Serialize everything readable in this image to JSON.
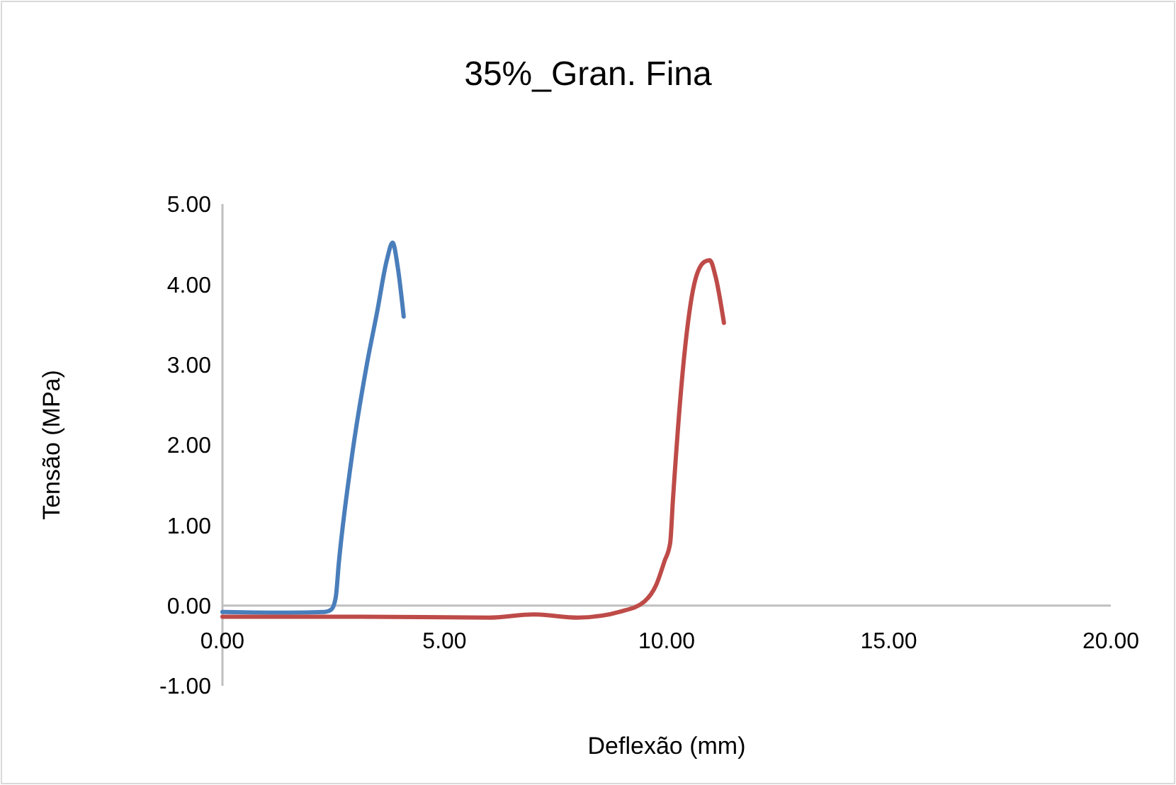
{
  "chart_data": {
    "type": "line",
    "title": "35%_Gran. Fina",
    "xlabel": "Deflexão (mm)",
    "ylabel": "Tensão (MPa)",
    "xlim": [
      0,
      20
    ],
    "xticks": [
      {
        "value": 0,
        "label": "0.00"
      },
      {
        "value": 5,
        "label": "5.00"
      },
      {
        "value": 10,
        "label": "10.00"
      },
      {
        "value": 15,
        "label": "15.00"
      },
      {
        "value": 20,
        "label": "20.00"
      }
    ],
    "ylim": [
      -1,
      5
    ],
    "yticks": [
      {
        "value": -1,
        "label": "-1.00"
      },
      {
        "value": 0,
        "label": "0.00"
      },
      {
        "value": 1,
        "label": "1.00"
      },
      {
        "value": 2,
        "label": "2.00"
      },
      {
        "value": 3,
        "label": "3.00"
      },
      {
        "value": 4,
        "label": "4.00"
      },
      {
        "value": 5,
        "label": "5.00"
      }
    ],
    "grid": false,
    "marker": "none",
    "line_style": "solid",
    "series": [
      {
        "color": "#4a7ebb",
        "x": [
          0,
          1.5,
          2.3,
          2.45,
          2.55,
          2.62,
          2.9,
          3.25,
          3.48,
          3.7,
          3.83,
          3.95,
          4.08
        ],
        "values": [
          -0.08,
          -0.09,
          -0.08,
          -0.05,
          0.1,
          0.53,
          1.8,
          3.0,
          3.65,
          4.3,
          4.52,
          4.2,
          3.6
        ]
      },
      {
        "color": "#be4b48",
        "x": [
          0,
          3,
          6,
          7,
          8,
          9,
          9.5,
          9.76,
          9.95,
          10.08,
          10.14,
          10.4,
          10.62,
          10.85,
          10.97,
          11.1,
          11.29
        ],
        "values": [
          -0.14,
          -0.14,
          -0.15,
          -0.11,
          -0.15,
          -0.07,
          0.05,
          0.25,
          0.55,
          0.78,
          1.3,
          3.13,
          4.0,
          4.28,
          4.3,
          4.1,
          3.52
        ]
      }
    ]
  }
}
